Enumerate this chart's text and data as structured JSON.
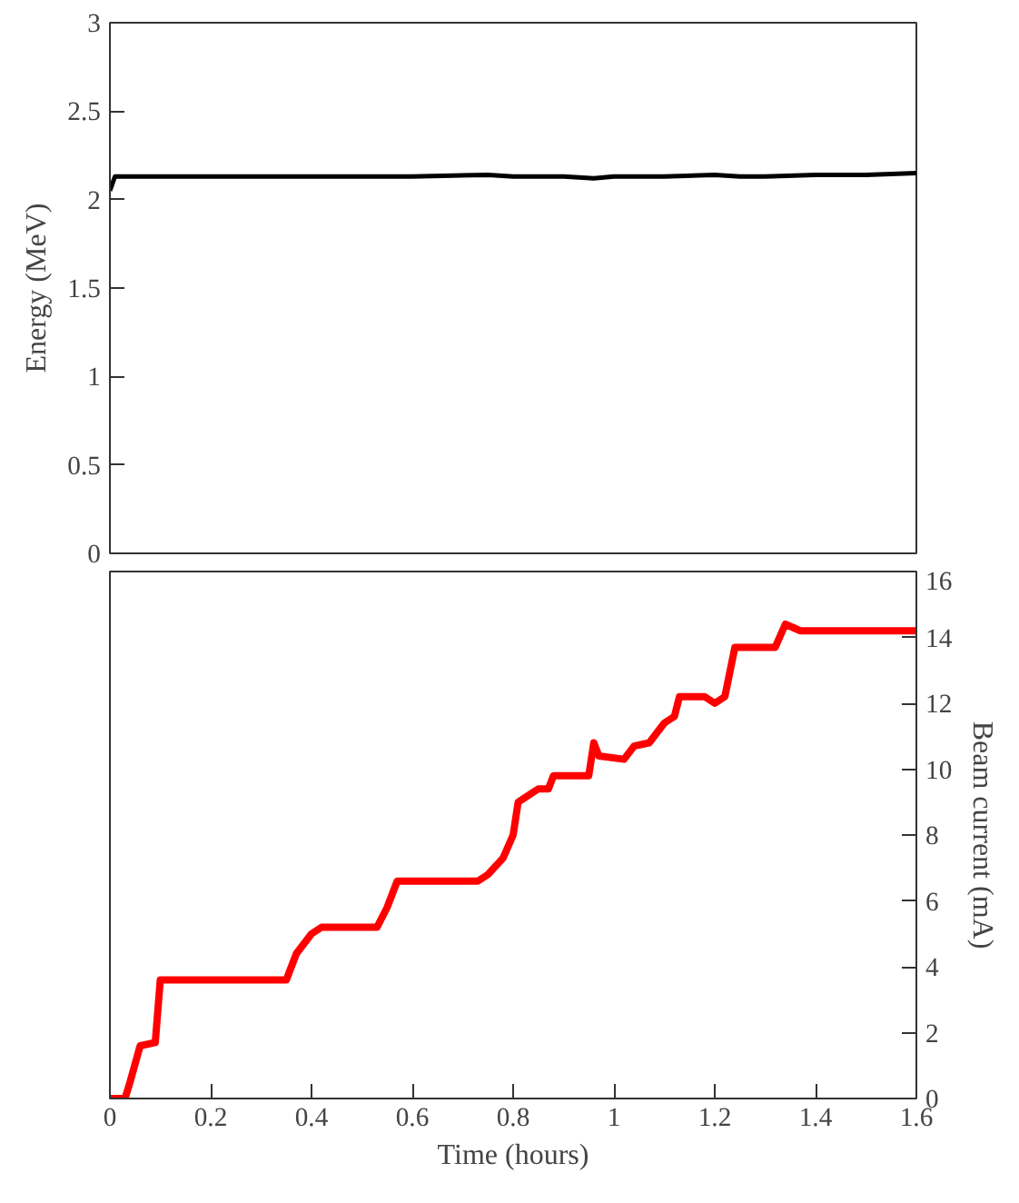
{
  "chart_data": [
    {
      "type": "line",
      "ylabel": "Energy (MeV)",
      "xlim": [
        0,
        1.6
      ],
      "ylim": [
        0,
        3
      ],
      "yticks": [
        0,
        0.5,
        1,
        1.5,
        2,
        2.5,
        3
      ],
      "tick_labels": "y",
      "grid": false,
      "series": [
        {
          "color": "#000000",
          "x": [
            0,
            0.01,
            0.2,
            0.4,
            0.6,
            0.75,
            0.8,
            0.9,
            0.96,
            1.0,
            1.1,
            1.2,
            1.25,
            1.3,
            1.4,
            1.5,
            1.6
          ],
          "values": [
            2.05,
            2.13,
            2.13,
            2.13,
            2.13,
            2.14,
            2.13,
            2.13,
            2.12,
            2.13,
            2.13,
            2.14,
            2.13,
            2.13,
            2.14,
            2.14,
            2.15
          ]
        }
      ]
    },
    {
      "type": "line",
      "xlabel": "Time (hours)",
      "y2label": "Beam current (mA)",
      "xlim": [
        0,
        1.6
      ],
      "xticks": [
        0,
        0.2,
        0.4,
        0.6,
        0.8,
        1,
        1.2,
        1.4,
        1.6
      ],
      "y2lim": [
        0,
        16
      ],
      "y2ticks": [
        0,
        2,
        4,
        6,
        8,
        10,
        12,
        14,
        16
      ],
      "grid": false,
      "series": [
        {
          "color": "#ff0000",
          "axis": "y2",
          "x": [
            0,
            0.03,
            0.04,
            0.06,
            0.09,
            0.1,
            0.35,
            0.37,
            0.4,
            0.42,
            0.53,
            0.55,
            0.57,
            0.73,
            0.75,
            0.78,
            0.8,
            0.81,
            0.82,
            0.85,
            0.87,
            0.88,
            0.95,
            0.96,
            0.97,
            1.02,
            1.04,
            1.07,
            1.1,
            1.12,
            1.13,
            1.18,
            1.2,
            1.22,
            1.24,
            1.32,
            1.34,
            1.37,
            1.5,
            1.6
          ],
          "values": [
            0,
            0,
            0.5,
            1.6,
            1.7,
            3.6,
            3.6,
            4.4,
            5.0,
            5.2,
            5.2,
            5.8,
            6.6,
            6.6,
            6.8,
            7.3,
            8.0,
            9.0,
            9.1,
            9.4,
            9.4,
            9.8,
            9.8,
            10.8,
            10.4,
            10.3,
            10.7,
            10.8,
            11.4,
            11.6,
            12.2,
            12.2,
            12.0,
            12.2,
            13.7,
            13.7,
            14.4,
            14.2,
            14.2,
            14.2
          ]
        }
      ]
    }
  ]
}
